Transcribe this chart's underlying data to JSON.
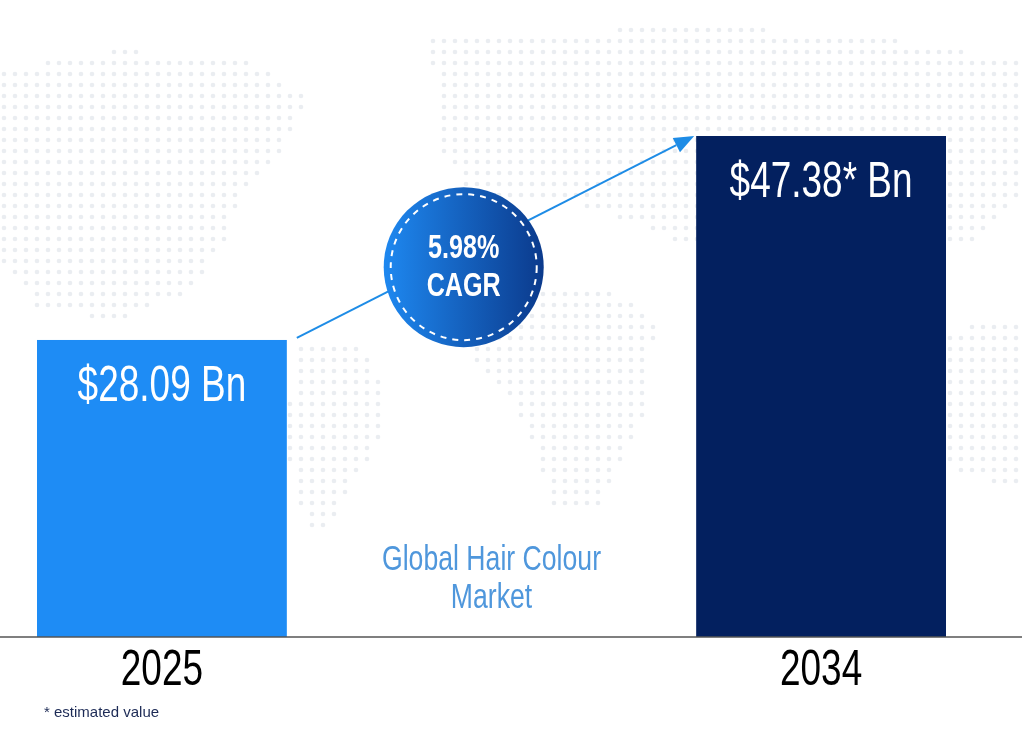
{
  "chart_data": {
    "type": "bar",
    "title": "Global Hair Colour Market",
    "categories": [
      "2025",
      "2034"
    ],
    "values": [
      28.09,
      47.38
    ],
    "colors": [
      "#1e8cf5",
      "#03205f"
    ],
    "value_labels": [
      "$28.09 Bn",
      "$47.38* Bn"
    ],
    "annotations": [
      "5.98% CAGR",
      "* estimated value"
    ]
  }
}
